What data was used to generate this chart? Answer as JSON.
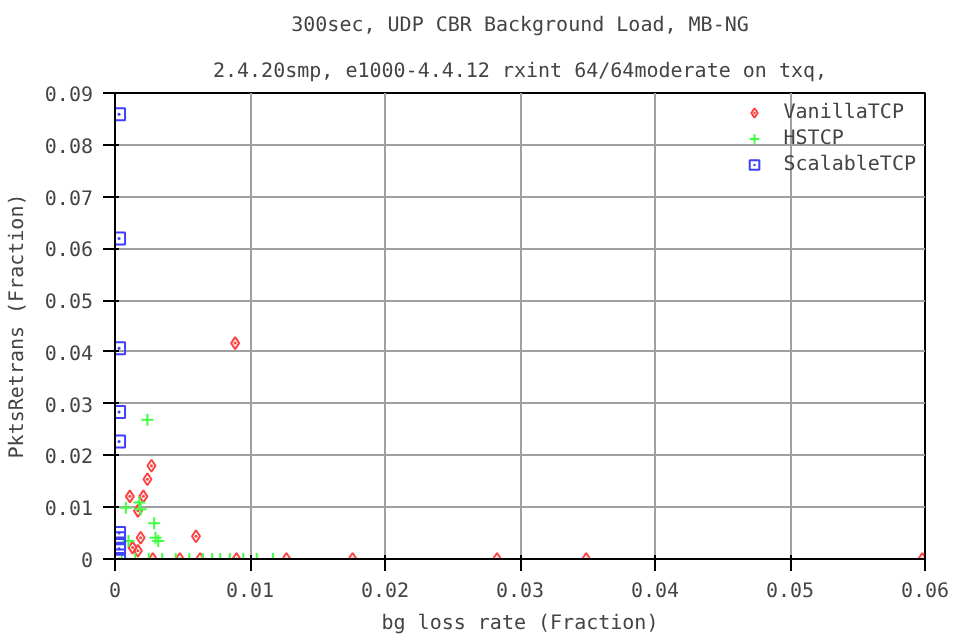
{
  "chart_data": {
    "type": "scatter",
    "title": "300sec, UDP CBR Background Load, MB-NG",
    "subtitle": "2.4.20smp, e1000-4.4.12 rxint 64/64moderate on txq,",
    "xlabel": "bg loss rate (Fraction)",
    "ylabel": "PktsRetrans (Fraction)",
    "xlim": [
      0,
      0.06
    ],
    "ylim": [
      0,
      0.09
    ],
    "xticks": [
      0,
      0.01,
      0.02,
      0.03,
      0.04,
      0.05,
      0.06
    ],
    "yticks": [
      0,
      0.01,
      0.02,
      0.03,
      0.04,
      0.05,
      0.06,
      0.07,
      0.08,
      0.09
    ],
    "grid": true,
    "legend": "top right",
    "series": [
      {
        "name": "VanillaTCP",
        "color": "#ff4040",
        "marker": "diamond",
        "x": [
          0.0089,
          0.0027,
          0.0024,
          0.0011,
          0.0021,
          0.0017,
          0.0019,
          0.006,
          0.0013,
          0.0017,
          0.0028,
          0.0048,
          0.0063,
          0.009,
          0.0127,
          0.0176,
          0.0283,
          0.0349,
          0.0598
        ],
        "values": [
          0.0417,
          0.018,
          0.0154,
          0.0121,
          0.0121,
          0.0093,
          0.0041,
          0.0044,
          0.0022,
          0.0016,
          0,
          0,
          0,
          0,
          0,
          0,
          0,
          0,
          0
        ]
      },
      {
        "name": "HSTCP",
        "color": "#40ff40",
        "marker": "cross",
        "x": [
          0.0024,
          0.0008,
          0.0018,
          0.0019,
          0.0029,
          0.003,
          0.0032,
          0.001,
          0.0005,
          0.0015,
          0.0025,
          0.0035,
          0.0045,
          0.0055,
          0.0065,
          0.0072,
          0.0078,
          0.0085,
          0.0095,
          0.0105,
          0.0117
        ],
        "values": [
          0.0269,
          0.0099,
          0.0109,
          0.0096,
          0.0069,
          0.0041,
          0.0035,
          0.0035,
          0,
          0,
          0,
          0,
          0,
          0,
          0,
          0,
          0,
          0,
          0,
          0,
          0
        ]
      },
      {
        "name": "ScalableTCP",
        "color": "#4040ff",
        "marker": "square",
        "x": [
          0.0003,
          0.0003,
          0.0003,
          0.0003,
          0.0003,
          0.0003,
          0.0003,
          0.0003,
          0.0003,
          0.0003
        ],
        "values": [
          0.0859,
          0.0619,
          0.0407,
          0.0284,
          0.0227,
          0.005,
          0.004,
          0.003,
          0.002,
          0
        ]
      }
    ]
  }
}
